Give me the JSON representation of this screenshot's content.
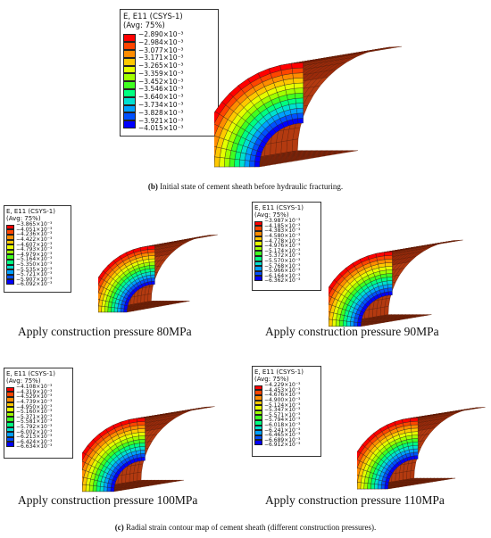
{
  "legend_title": "E, E11 (CSYS-1)",
  "legend_avg": "(Avg: 75%)",
  "colors": [
    "#ff0000",
    "#ff4500",
    "#ff8c00",
    "#ffc800",
    "#e6ff00",
    "#a0ff00",
    "#40ff20",
    "#00ff80",
    "#00e0d0",
    "#00a0ff",
    "#0050ff",
    "#0000ff"
  ],
  "main": {
    "values": [
      "−2.890×10⁻³",
      "−2.984×10⁻³",
      "−3.077×10⁻³",
      "−3.171×10⁻³",
      "−3.265×10⁻³",
      "−3.359×10⁻³",
      "−3.452×10⁻³",
      "−3.546×10⁻³",
      "−3.640×10⁻³",
      "−3.734×10⁻³",
      "−3.828×10⁻³",
      "−3.921×10⁻³",
      "−4.015×10⁻³"
    ],
    "caption_letter": "(b)",
    "caption_text": "Initial state of cement sheath before hydraulic fracturing."
  },
  "panels": [
    {
      "label": "Apply construction pressure 80MPa",
      "values": [
        "−3.865×10⁻³",
        "−4.051×10⁻³",
        "−4.236×10⁻³",
        "−4.422×10⁻³",
        "−4.607×10⁻³",
        "−4.793×10⁻³",
        "−4.979×10⁻³",
        "−5.164×10⁻³",
        "−5.350×10⁻³",
        "−5.535×10⁻³",
        "−5.721×10⁻³",
        "−5.907×10⁻³",
        "−6.092×10⁻³"
      ]
    },
    {
      "label": "Apply construction pressure 90MPa",
      "values": [
        "−3.987×10⁻³",
        "−4.185×10⁻³",
        "−4.383×10⁻³",
        "−4.580×10⁻³",
        "−4.778×10⁻³",
        "−4.976×10⁻³",
        "−5.174×10⁻³",
        "−5.372×10⁻³",
        "−5.570×10⁻³",
        "−5.768×10⁻³",
        "−5.966×10⁻³",
        "−6.164×10⁻³",
        "−6.362×10⁻³"
      ]
    },
    {
      "label": "Apply construction pressure 100MPa",
      "values": [
        "−4.108×10⁻³",
        "−4.319×10⁻³",
        "−4.529×10⁻³",
        "−4.739×10⁻³",
        "−4.950×10⁻³",
        "−5.160×10⁻³",
        "−5.371×10⁻³",
        "−5.581×10⁻³",
        "−5.792×10⁻³",
        "−6.002×10⁻³",
        "−6.213×10⁻³",
        "−6.424×10⁻³",
        "−6.634×10⁻³"
      ]
    },
    {
      "label": "Apply construction pressure 110MPa",
      "values": [
        "−4.229×10⁻³",
        "−4.453×10⁻³",
        "−4.676×10⁻³",
        "−4.900×10⁻³",
        "−5.124×10⁻³",
        "−5.347×10⁻³",
        "−5.571×10⁻³",
        "−5.794×10⁻³",
        "−6.018×10⁻³",
        "−6.241×10⁻³",
        "−6.465×10⁻³",
        "−6.689×10⁻³",
        "−6.912×10⁻³"
      ]
    }
  ],
  "bottom_caption_letter": "(c)",
  "bottom_caption_text": "Radial strain contour map of cement sheath (different construction pressures)."
}
